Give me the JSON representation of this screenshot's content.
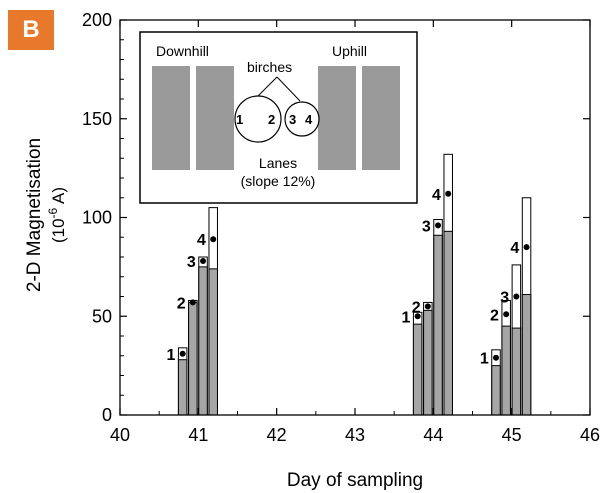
{
  "panel_label": "B",
  "chart_data": {
    "type": "bar",
    "xlabel": "Day of sampling",
    "ylabel_main": "2-D Magnetisation",
    "ylabel_unit": "(10",
    "ylabel_exp": "-6",
    "ylabel_unit_end": " A)",
    "xlim": [
      40,
      46
    ],
    "ylim": [
      0,
      200
    ],
    "xticks": [
      "40",
      "41",
      "42",
      "43",
      "44",
      "45",
      "46"
    ],
    "yticks": [
      "0",
      "50",
      "100",
      "150",
      "200"
    ],
    "colors": {
      "filled": "#a6a6a6",
      "open": "#ffffff",
      "stroke": "#000000",
      "badge": "#e8782a"
    },
    "groups": [
      {
        "day": 41,
        "bars": [
          {
            "label": "1",
            "total": 34,
            "gray": 28,
            "dot": 31
          },
          {
            "label": "2",
            "total": 58,
            "gray": 57,
            "dot": 57
          },
          {
            "label": "3",
            "total": 80,
            "gray": 75,
            "dot": 78
          },
          {
            "label": "4",
            "total": 105,
            "gray": 74,
            "dot": 89
          }
        ]
      },
      {
        "day": 44,
        "bars": [
          {
            "label": "1",
            "total": 52,
            "gray": 46,
            "dot": 50
          },
          {
            "label": "2",
            "total": 57,
            "gray": 53,
            "dot": 55
          },
          {
            "label": "3",
            "total": 99,
            "gray": 91,
            "dot": 96
          },
          {
            "label": "4",
            "total": 132,
            "gray": 93,
            "dot": 112
          }
        ]
      },
      {
        "day": 45,
        "bars": [
          {
            "label": "1",
            "total": 33,
            "gray": 25,
            "dot": 29
          },
          {
            "label": "2",
            "total": 58,
            "gray": 45,
            "dot": 51
          },
          {
            "label": "3",
            "total": 76,
            "gray": 44,
            "dot": 60
          },
          {
            "label": "4",
            "total": 110,
            "gray": 61,
            "dot": 85
          }
        ]
      }
    ]
  },
  "inset": {
    "downhill": "Downhill",
    "uphill": "Uphill",
    "birches": "birches",
    "tree_left_labels": [
      "1",
      "2"
    ],
    "tree_right_labels": [
      "3",
      "4"
    ],
    "lanes": "Lanes",
    "slope": "(slope 12%)"
  }
}
